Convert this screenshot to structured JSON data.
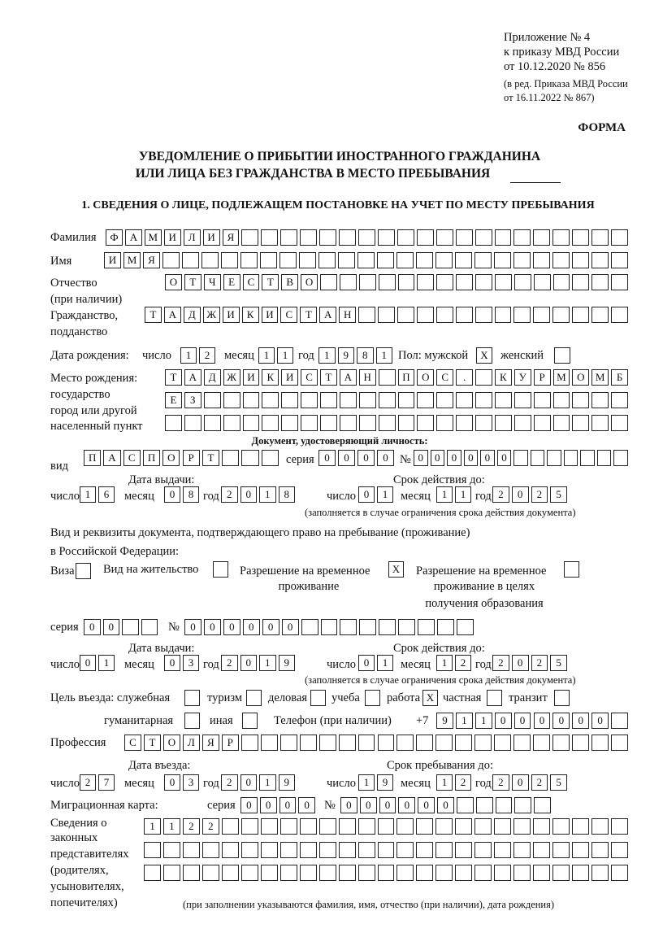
{
  "header": {
    "appendix": [
      "Приложение № 4",
      "к приказу МВД России",
      "от 10.12.2020 № 856"
    ],
    "edition": [
      "(в ред. Приказа МВД России",
      "от 16.11.2022 № 867)"
    ],
    "form_label": "ФОРМА",
    "title_line1": "УВЕДОМЛЕНИЕ О ПРИБЫТИИ ИНОСТРАННОГО ГРАЖДАНИНА",
    "title_line2": "ИЛИ ЛИЦА БЕЗ ГРАЖДАНСТВА В МЕСТО ПРЕБЫВАНИЯ",
    "section1": "1. СВЕДЕНИЯ О ЛИЦЕ, ПОДЛЕЖАЩЕМ ПОСТАНОВКЕ НА УЧЕТ ПО МЕСТУ ПРЕБЫВАНИЯ"
  },
  "labels": {
    "surname": "Фамилия",
    "name": "Имя",
    "patronymic": [
      "Отчество",
      "(при наличии)"
    ],
    "citizenship": [
      "Гражданство,",
      "подданство"
    ],
    "birth_date": "Дата рождения:",
    "day": "число",
    "month": "месяц",
    "year": "год",
    "sex": "Пол: мужской",
    "female": "женский",
    "birth_place": [
      "Место рождения:",
      "государство",
      "город или другой",
      "населенный пункт"
    ],
    "id_doc": "Документ, удостоверяющий личность:",
    "kind": "вид",
    "series": "серия",
    "number": "№",
    "issue_date": "Дата выдачи:",
    "valid_until": "Срок действия до:",
    "valid_note": "(заполняется в случае ограничения срока действия документа)",
    "stay_doc": [
      "Вид и реквизиты документа, подтверждающего право на пребывание (проживание)",
      "в Российской Федерации:"
    ],
    "visa": "Виза",
    "residence": "Вид на жительство",
    "trp": [
      "Разрешение на временное",
      "проживание"
    ],
    "trp_edu": [
      "Разрешение на временное",
      "проживание в целях",
      "получения образования"
    ],
    "purpose": "Цель въезда: служебная",
    "tourism": "туризм",
    "business": "деловая",
    "study": "учеба",
    "work": "работа",
    "private": "частная",
    "transit": "транзит",
    "humanitarian": "гуманитарная",
    "other": "иная",
    "phone": "Телефон (при наличии)",
    "phone_prefix": "+7",
    "profession": "Профессия",
    "entry_date": "Дата въезда:",
    "stay_until": "Срок пребывания до:",
    "migration_card": "Миграционная карта:",
    "representatives": [
      "Сведения о",
      "законных",
      "представителях",
      "(родителях,",
      "усыновителях,",
      "попечителях)"
    ],
    "rep_note": "(при заполнении указываются фамилия, имя, отчество (при наличии), дата рождения)"
  },
  "person": {
    "surname": "ФАМИЛИЯ",
    "name": "ИМЯ",
    "patronymic": "ОТЧЕСТВО",
    "citizenship": "ТАДЖИКИСТАН",
    "birth_day": "12",
    "birth_month": "11",
    "birth_year": "1981",
    "male": "X",
    "female": "",
    "birth_place1": "ТАДЖИКИСТАН ПОС. КУРМОМБ",
    "birth_place2": "ЕЗ",
    "birth_place3": ""
  },
  "id_document": {
    "kind": "ПАСПОРТ",
    "series": "0000",
    "number": "000000",
    "issue_day": "16",
    "issue_month": "08",
    "issue_year": "2018",
    "valid_day": "01",
    "valid_month": "11",
    "valid_year": "2025"
  },
  "stay_document": {
    "visa": "",
    "residence": "",
    "trp": "X",
    "trp_edu": "",
    "series": "00",
    "number": "000000",
    "issue_day": "01",
    "issue_month": "03",
    "issue_year": "2019",
    "valid_day": "01",
    "valid_month": "12",
    "valid_year": "2025"
  },
  "purpose": {
    "official": "",
    "tourism": "",
    "business": "",
    "study": "",
    "work": "X",
    "private": "",
    "transit": "",
    "humanitarian": "",
    "other": ""
  },
  "phone": "911000000",
  "profession": "СТОЛЯР",
  "entry": {
    "entry_day": "27",
    "entry_month": "03",
    "entry_year": "2019",
    "stay_day": "19",
    "stay_month": "12",
    "stay_year": "2025"
  },
  "migration_card": {
    "series": "0000",
    "number": "000000"
  },
  "representatives": [
    "1122",
    "",
    ""
  ]
}
